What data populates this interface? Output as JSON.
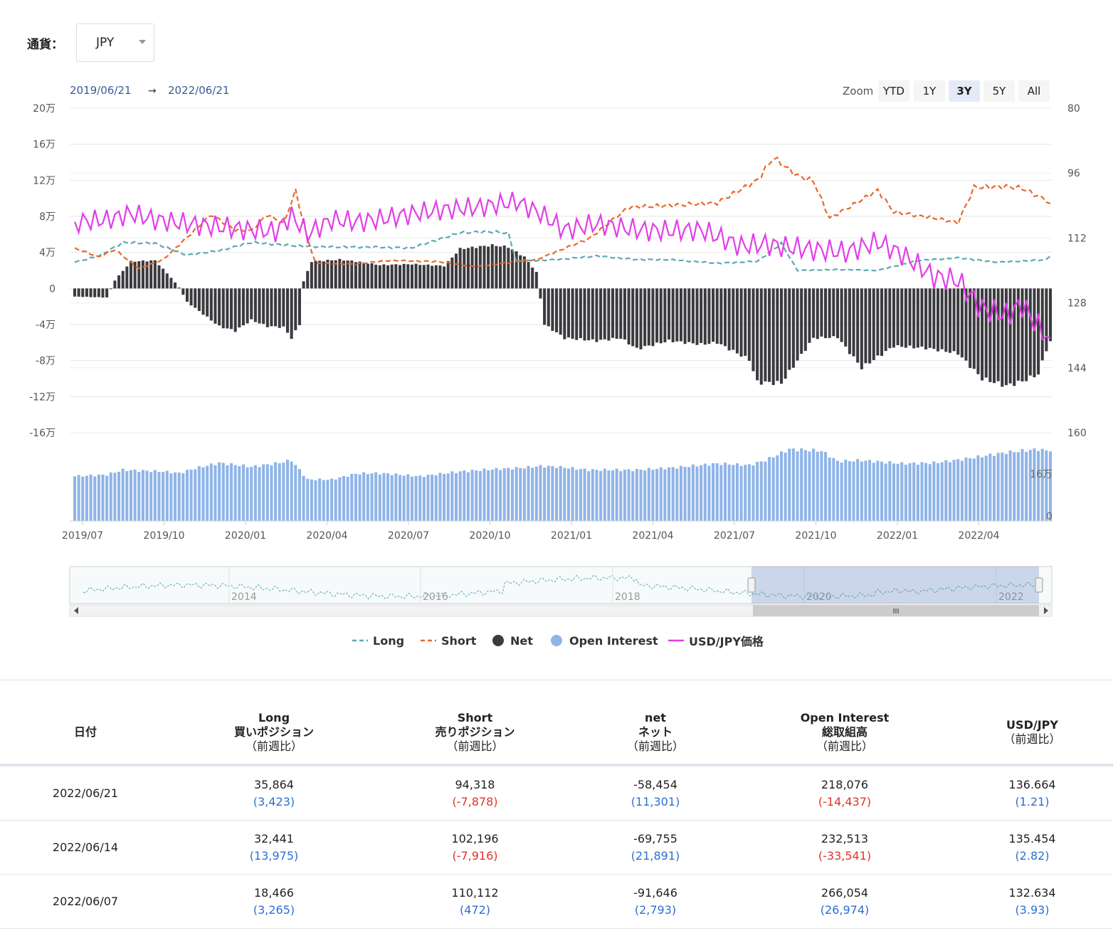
{
  "currency": {
    "label": "通貨：",
    "value": "JPY"
  },
  "range": {
    "from": "2019/06/21",
    "arrow": "→",
    "to": "2022/06/21"
  },
  "zoom": {
    "label": "Zoom",
    "buttons": [
      "YTD",
      "1Y",
      "3Y",
      "5Y",
      "All"
    ],
    "selected": "3Y"
  },
  "colors": {
    "long": "#5aa9b0",
    "short": "#e8692a",
    "net": "#3a3a3f",
    "open_interest": "#8fb4e8",
    "price": "#e23ee8"
  },
  "legend": [
    "Long",
    "Short",
    "Net",
    "Open Interest",
    "USD/JPY価格"
  ],
  "chart_data": {
    "type": "line",
    "left_axis": {
      "ticks": [
        "20万",
        "16万",
        "12万",
        "8万",
        "4万",
        "0",
        "-4万",
        "-8万",
        "-12万",
        "-16万"
      ],
      "ylim": [
        -160000,
        200000
      ]
    },
    "right_axis": {
      "ticks": [
        "80",
        "96",
        "112",
        "128",
        "144",
        "160"
      ],
      "ylim": [
        80,
        160
      ],
      "reversed": true
    },
    "oi_axis": {
      "ticks": [
        "16万",
        "0"
      ]
    },
    "x_ticks": [
      "2019/07",
      "2019/10",
      "2020/01",
      "2020/04",
      "2020/07",
      "2020/10",
      "2021/01",
      "2021/04",
      "2021/07",
      "2021/10",
      "2022/01",
      "2022/04"
    ],
    "navigator_years": [
      "2014",
      "2016",
      "2018",
      "2020",
      "2022"
    ],
    "navigator_thumb": "III",
    "series": [
      {
        "name": "Long",
        "style": "dashed",
        "x_start": "2019/06/25",
        "x_end": "2022/06/21",
        "keyframes": [
          [
            0,
            29000
          ],
          [
            6,
            36000
          ],
          [
            12,
            51000
          ],
          [
            20,
            50000
          ],
          [
            28,
            37000
          ],
          [
            36,
            42000
          ],
          [
            44,
            51000
          ],
          [
            56,
            47000
          ],
          [
            64,
            46000
          ],
          [
            72,
            46000
          ],
          [
            84,
            45000
          ],
          [
            96,
            62000
          ],
          [
            104,
            63000
          ],
          [
            108,
            61000
          ],
          [
            110,
            30000
          ],
          [
            120,
            32000
          ],
          [
            130,
            36000
          ],
          [
            140,
            32000
          ],
          [
            148,
            32000
          ],
          [
            160,
            28000
          ],
          [
            170,
            30000
          ],
          [
            176,
            50000
          ],
          [
            180,
            20000
          ],
          [
            190,
            21000
          ],
          [
            200,
            20000
          ],
          [
            210,
            31000
          ],
          [
            220,
            34000
          ],
          [
            230,
            29000
          ],
          [
            242,
            32000
          ],
          [
            243,
            35864
          ]
        ]
      },
      {
        "name": "Short",
        "style": "dashed",
        "x_start": "2019/06/25",
        "x_end": "2022/06/21",
        "keyframes": [
          [
            0,
            45000
          ],
          [
            6,
            35000
          ],
          [
            10,
            43000
          ],
          [
            16,
            22000
          ],
          [
            22,
            32000
          ],
          [
            30,
            65000
          ],
          [
            34,
            82000
          ],
          [
            40,
            65000
          ],
          [
            44,
            64000
          ],
          [
            48,
            82000
          ],
          [
            52,
            72000
          ],
          [
            55,
            108000
          ],
          [
            58,
            55000
          ],
          [
            60,
            28000
          ],
          [
            70,
            27000
          ],
          [
            78,
            31000
          ],
          [
            90,
            30000
          ],
          [
            100,
            24000
          ],
          [
            110,
            30000
          ],
          [
            115,
            32000
          ],
          [
            128,
            55000
          ],
          [
            138,
            90000
          ],
          [
            148,
            92000
          ],
          [
            160,
            95000
          ],
          [
            170,
            120000
          ],
          [
            174,
            145000
          ],
          [
            180,
            125000
          ],
          [
            184,
            119000
          ],
          [
            188,
            78000
          ],
          [
            194,
            93000
          ],
          [
            200,
            109000
          ],
          [
            204,
            85000
          ],
          [
            214,
            78000
          ],
          [
            220,
            73000
          ],
          [
            224,
            112000
          ],
          [
            232,
            113000
          ],
          [
            236,
            111000
          ],
          [
            242,
            98000
          ],
          [
            243,
            94318
          ]
        ]
      },
      {
        "name": "Net",
        "type": "bar",
        "x_start": "2019/06/25",
        "x_end": "2022/06/21",
        "keyframes": [
          [
            0,
            -9000
          ],
          [
            8,
            -10000
          ],
          [
            10,
            9000
          ],
          [
            14,
            30000
          ],
          [
            20,
            31000
          ],
          [
            24,
            12000
          ],
          [
            26,
            1000
          ],
          [
            28,
            -15000
          ],
          [
            36,
            -42000
          ],
          [
            40,
            -47000
          ],
          [
            44,
            -35000
          ],
          [
            48,
            -42000
          ],
          [
            52,
            -43000
          ],
          [
            54,
            -55000
          ],
          [
            56,
            -40000
          ],
          [
            57,
            8000
          ],
          [
            59,
            30000
          ],
          [
            66,
            32000
          ],
          [
            70,
            30000
          ],
          [
            76,
            26000
          ],
          [
            84,
            27000
          ],
          [
            92,
            25000
          ],
          [
            96,
            44000
          ],
          [
            104,
            48000
          ],
          [
            108,
            46000
          ],
          [
            112,
            35000
          ],
          [
            115,
            18000
          ],
          [
            117,
            -40000
          ],
          [
            122,
            -55000
          ],
          [
            130,
            -58000
          ],
          [
            136,
            -55000
          ],
          [
            140,
            -67000
          ],
          [
            148,
            -58000
          ],
          [
            156,
            -62000
          ],
          [
            160,
            -60000
          ],
          [
            168,
            -79000
          ],
          [
            170,
            -104000
          ],
          [
            176,
            -105000
          ],
          [
            180,
            -80000
          ],
          [
            184,
            -55000
          ],
          [
            190,
            -54000
          ],
          [
            196,
            -88000
          ],
          [
            204,
            -64000
          ],
          [
            212,
            -66000
          ],
          [
            220,
            -72000
          ],
          [
            226,
            -100000
          ],
          [
            232,
            -108000
          ],
          [
            236,
            -103000
          ],
          [
            240,
            -95000
          ],
          [
            242,
            -68000
          ],
          [
            243,
            -58454
          ]
        ]
      },
      {
        "name": "Open Interest",
        "type": "bar",
        "x_start": "2019/06/25",
        "x_end": "2022/06/21",
        "keyframes": [
          [
            0,
            140000
          ],
          [
            8,
            145000
          ],
          [
            12,
            160000
          ],
          [
            22,
            155000
          ],
          [
            26,
            150000
          ],
          [
            30,
            165000
          ],
          [
            36,
            182000
          ],
          [
            44,
            170000
          ],
          [
            50,
            180000
          ],
          [
            54,
            190000
          ],
          [
            58,
            130000
          ],
          [
            64,
            130000
          ],
          [
            70,
            148000
          ],
          [
            74,
            150000
          ],
          [
            78,
            148000
          ],
          [
            86,
            140000
          ],
          [
            96,
            155000
          ],
          [
            104,
            162000
          ],
          [
            112,
            167000
          ],
          [
            116,
            172000
          ],
          [
            120,
            170000
          ],
          [
            128,
            160000
          ],
          [
            140,
            160000
          ],
          [
            150,
            168000
          ],
          [
            160,
            180000
          ],
          [
            168,
            175000
          ],
          [
            172,
            190000
          ],
          [
            178,
            225000
          ],
          [
            186,
            220000
          ],
          [
            190,
            187000
          ],
          [
            196,
            190000
          ],
          [
            206,
            180000
          ],
          [
            214,
            182000
          ],
          [
            222,
            195000
          ],
          [
            232,
            215000
          ],
          [
            240,
            225000
          ],
          [
            243,
            218076
          ]
        ]
      },
      {
        "name": "USD/JPY価格",
        "x_start": "2019/06/25",
        "x_end": "2022/06/21",
        "keyframes": [
          [
            0,
            108.0
          ],
          [
            8,
            107.5
          ],
          [
            14,
            106.0
          ],
          [
            20,
            107.5
          ],
          [
            28,
            108.5
          ],
          [
            36,
            109.2
          ],
          [
            44,
            110.0
          ],
          [
            50,
            110.4
          ],
          [
            54,
            106.5
          ],
          [
            58,
            111.0
          ],
          [
            64,
            107.5
          ],
          [
            70,
            108.0
          ],
          [
            76,
            107.4
          ],
          [
            84,
            106.0
          ],
          [
            92,
            105.0
          ],
          [
            100,
            104.5
          ],
          [
            110,
            103.0
          ],
          [
            116,
            106.0
          ],
          [
            122,
            110.0
          ],
          [
            130,
            108.5
          ],
          [
            140,
            110.0
          ],
          [
            148,
            110.2
          ],
          [
            156,
            110.0
          ],
          [
            166,
            114.0
          ],
          [
            172,
            113.5
          ],
          [
            178,
            114.3
          ],
          [
            186,
            115.0
          ],
          [
            192,
            115.5
          ],
          [
            200,
            113.0
          ],
          [
            206,
            116.0
          ],
          [
            214,
            121.5
          ],
          [
            220,
            122.5
          ],
          [
            226,
            129.5
          ],
          [
            232,
            131.0
          ],
          [
            236,
            128.5
          ],
          [
            240,
            134.0
          ],
          [
            243,
            136.664
          ]
        ]
      }
    ]
  },
  "table": {
    "headers": [
      {
        "title": "日付",
        "sub1": "",
        "sub2": ""
      },
      {
        "title": "Long",
        "sub1": "買いポジション",
        "sub2": "（前週比）"
      },
      {
        "title": "Short",
        "sub1": "売りポジション",
        "sub2": "（前週比）"
      },
      {
        "title": "net",
        "sub1": "ネット",
        "sub2": "（前週比）"
      },
      {
        "title": "Open Interest",
        "sub1": "総取組高",
        "sub2": "（前週比）"
      },
      {
        "title": "USD/JPY",
        "sub1": "（前週比）",
        "sub2": ""
      }
    ],
    "rows": [
      {
        "date": "2022/06/21",
        "cells": [
          [
            "35,864",
            "(3,423)"
          ],
          [
            "94,318",
            "(-7,878)"
          ],
          [
            "-58,454",
            "(11,301)"
          ],
          [
            "218,076",
            "(-14,437)"
          ],
          [
            "136.664",
            "(1.21)"
          ]
        ]
      },
      {
        "date": "2022/06/14",
        "cells": [
          [
            "32,441",
            "(13,975)"
          ],
          [
            "102,196",
            "(-7,916)"
          ],
          [
            "-69,755",
            "(21,891)"
          ],
          [
            "232,513",
            "(-33,541)"
          ],
          [
            "135.454",
            "(2.82)"
          ]
        ]
      },
      {
        "date": "2022/06/07",
        "cells": [
          [
            "18,466",
            "(3,265)"
          ],
          [
            "110,112",
            "(472)"
          ],
          [
            "-91,646",
            "(2,793)"
          ],
          [
            "266,054",
            "(26,974)"
          ],
          [
            "132.634",
            "(3.93)"
          ]
        ]
      }
    ]
  }
}
